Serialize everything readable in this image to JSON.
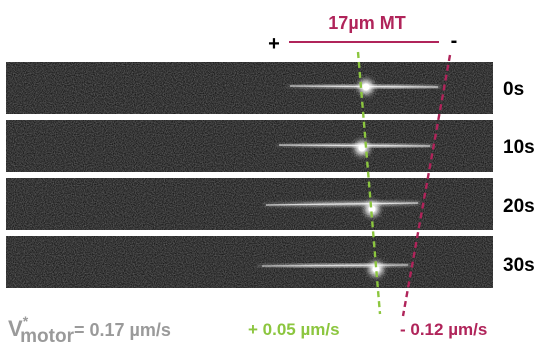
{
  "header": {
    "microtubule_label": "17µm MT",
    "plus_end": "+",
    "minus_end": "-"
  },
  "frames": [
    {
      "time": "0s"
    },
    {
      "time": "10s"
    },
    {
      "time": "20s"
    },
    {
      "time": "30s"
    }
  ],
  "footer": {
    "motor_velocity_symbol": "V",
    "motor_velocity_superscript": "*",
    "motor_velocity_subscript": "motor",
    "motor_velocity_value": "= 0.17 µm/s",
    "plus_end_velocity": "+ 0.05 µm/s",
    "minus_end_velocity": "- 0.12 µm/s"
  },
  "colors": {
    "microtubule_label": "#b0245a",
    "plus_velocity": "#8cc63f",
    "minus_velocity": "#b0245a",
    "motor_velocity": "#9a9a9a",
    "frame_background": "#141414",
    "time_labels": "#000000"
  }
}
